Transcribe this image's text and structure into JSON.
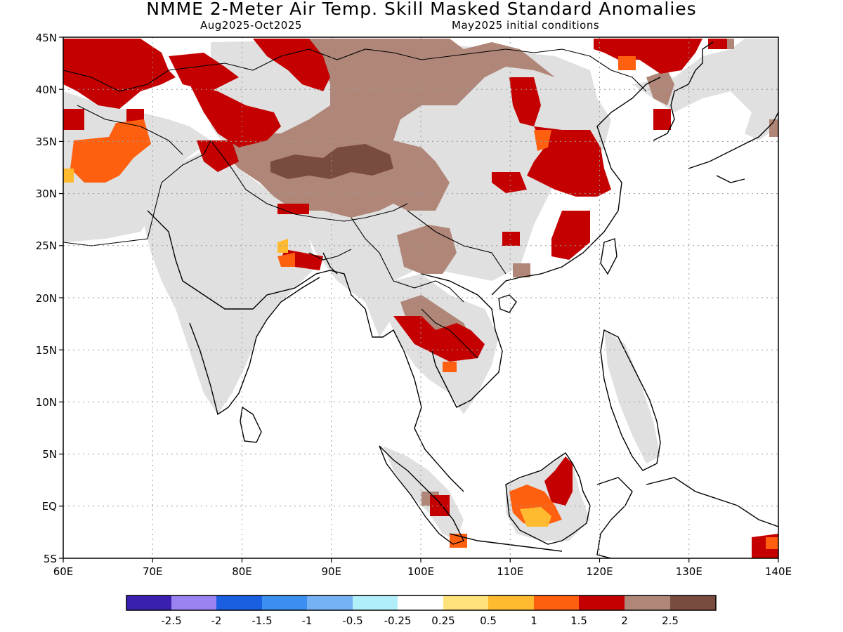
{
  "title": "NMME 2-Meter Air Temp. Skill Masked Standard Anomalies",
  "subtitle_left": "Aug2025-Oct2025",
  "subtitle_right": "May2025 initial conditions",
  "map": {
    "lon_range": [
      60,
      140
    ],
    "lat_range": [
      -5,
      45
    ],
    "lat_ticks": [
      "45N",
      "40N",
      "35N",
      "30N",
      "25N",
      "20N",
      "15N",
      "10N",
      "5N",
      "EQ",
      "5S"
    ],
    "lon_ticks": [
      "60E",
      "70E",
      "80E",
      "90E",
      "100E",
      "110E",
      "120E",
      "130E",
      "140E"
    ],
    "grid": "dotted"
  },
  "legend": {
    "colors": [
      "#3a1fb0",
      "#9a82f0",
      "#1a5fe0",
      "#3b8ff0",
      "#74b2f5",
      "#b0eefa",
      "#ffffff",
      "#ffe37a",
      "#ffba30",
      "#ff6010",
      "#c40000",
      "#b08678",
      "#7a4c40"
    ],
    "labels": [
      "-2.5",
      "-2",
      "-1.5",
      "-1",
      "-0.5",
      "-0.25",
      "0.25",
      "0.5",
      "1",
      "1.5",
      "2",
      "2.5"
    ]
  },
  "colors": {
    "insignificant": "#e0e0e0",
    "anom_1": "#ffba30",
    "anom_1_5": "#ff6010",
    "anom_2": "#c40000",
    "anom_2_5": "#b08678",
    "anom_3": "#7a4c40"
  }
}
